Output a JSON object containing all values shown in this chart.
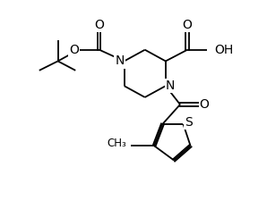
{
  "line_color": "#000000",
  "bg_color": "#ffffff",
  "lw": 1.3,
  "figsize": [
    2.98,
    2.34
  ],
  "dpi": 100,
  "xlim": [
    0,
    10
  ],
  "ylim": [
    0,
    10
  ]
}
